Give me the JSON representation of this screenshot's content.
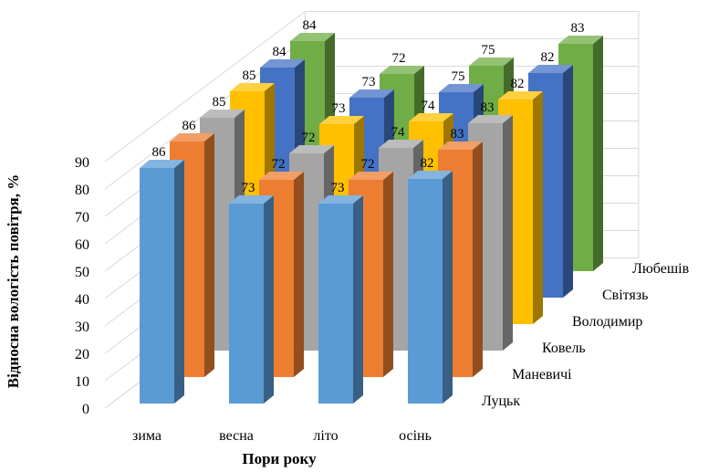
{
  "chart_data": {
    "type": "bar",
    "subtype": "3d-column",
    "title": "",
    "xlabel": "Пори року",
    "ylabel": "Відносна вологість повітря, %",
    "ylim": [
      0,
      90
    ],
    "yticks": [
      0,
      10,
      20,
      30,
      40,
      50,
      60,
      70,
      80,
      90
    ],
    "grid": true,
    "categories": [
      "зима",
      "весна",
      "літо",
      "осінь"
    ],
    "series": [
      {
        "name": "Луцьк",
        "color": "#5b9bd5",
        "values": [
          86,
          73,
          73,
          82
        ]
      },
      {
        "name": "Маневичі",
        "color": "#ed7d31",
        "values": [
          86,
          72,
          72,
          83
        ]
      },
      {
        "name": "Ковель",
        "color": "#a5a5a5",
        "values": [
          85,
          72,
          74,
          83
        ]
      },
      {
        "name": "Володимир",
        "color": "#ffc000",
        "values": [
          85,
          73,
          74,
          82
        ]
      },
      {
        "name": "Світязь",
        "color": "#4472c4",
        "values": [
          84,
          73,
          75,
          82
        ]
      },
      {
        "name": "Любешів",
        "color": "#70ad47",
        "values": [
          84,
          72,
          75,
          83
        ]
      }
    ]
  }
}
